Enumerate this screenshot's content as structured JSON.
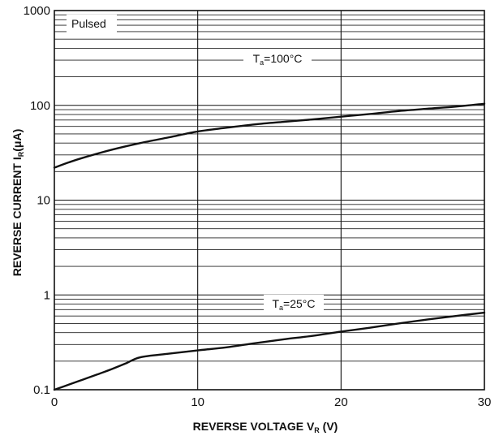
{
  "chart_data": {
    "type": "line",
    "xlabel": {
      "main": "REVERSE VOLTAGE",
      "symbol": "V",
      "sub": "R",
      "unit": "(V)"
    },
    "ylabel": {
      "main": "REVERSE CURRENT",
      "symbol": "I",
      "sub": "R",
      "unit": "(μA)"
    },
    "x_scale": "linear",
    "y_scale": "log",
    "xlim": [
      0,
      30
    ],
    "ylim": [
      0.1,
      1000
    ],
    "x_ticks": [
      0,
      10,
      20,
      30
    ],
    "x_tick_labels": [
      "0",
      "10",
      "20",
      "30"
    ],
    "y_ticks": [
      0.1,
      1,
      10,
      100,
      1000
    ],
    "y_tick_labels": [
      "0.1",
      "1",
      "10",
      "100",
      "1000"
    ],
    "grid": true,
    "annotations": [
      "Pulsed"
    ],
    "series": [
      {
        "label": {
          "symbol": "T",
          "sub": "a",
          "rest": "=100°C"
        },
        "x": [
          0,
          1,
          2,
          4,
          6,
          8,
          10,
          12,
          14,
          16,
          18,
          20,
          22,
          24,
          26,
          28,
          30
        ],
        "y": [
          22,
          25,
          28,
          34,
          40,
          46,
          53,
          58,
          63,
          67,
          71,
          76,
          81,
          87,
          92,
          97,
          104
        ]
      },
      {
        "label": {
          "symbol": "T",
          "sub": "a",
          "rest": "=25°C"
        },
        "x": [
          0,
          1,
          2,
          3,
          4,
          5,
          6,
          8,
          10,
          12,
          14,
          16,
          18,
          20,
          22,
          24,
          26,
          28,
          30
        ],
        "y": [
          0.1,
          0.113,
          0.128,
          0.145,
          0.165,
          0.19,
          0.22,
          0.24,
          0.26,
          0.28,
          0.31,
          0.34,
          0.37,
          0.41,
          0.45,
          0.5,
          0.55,
          0.6,
          0.65
        ]
      }
    ]
  }
}
